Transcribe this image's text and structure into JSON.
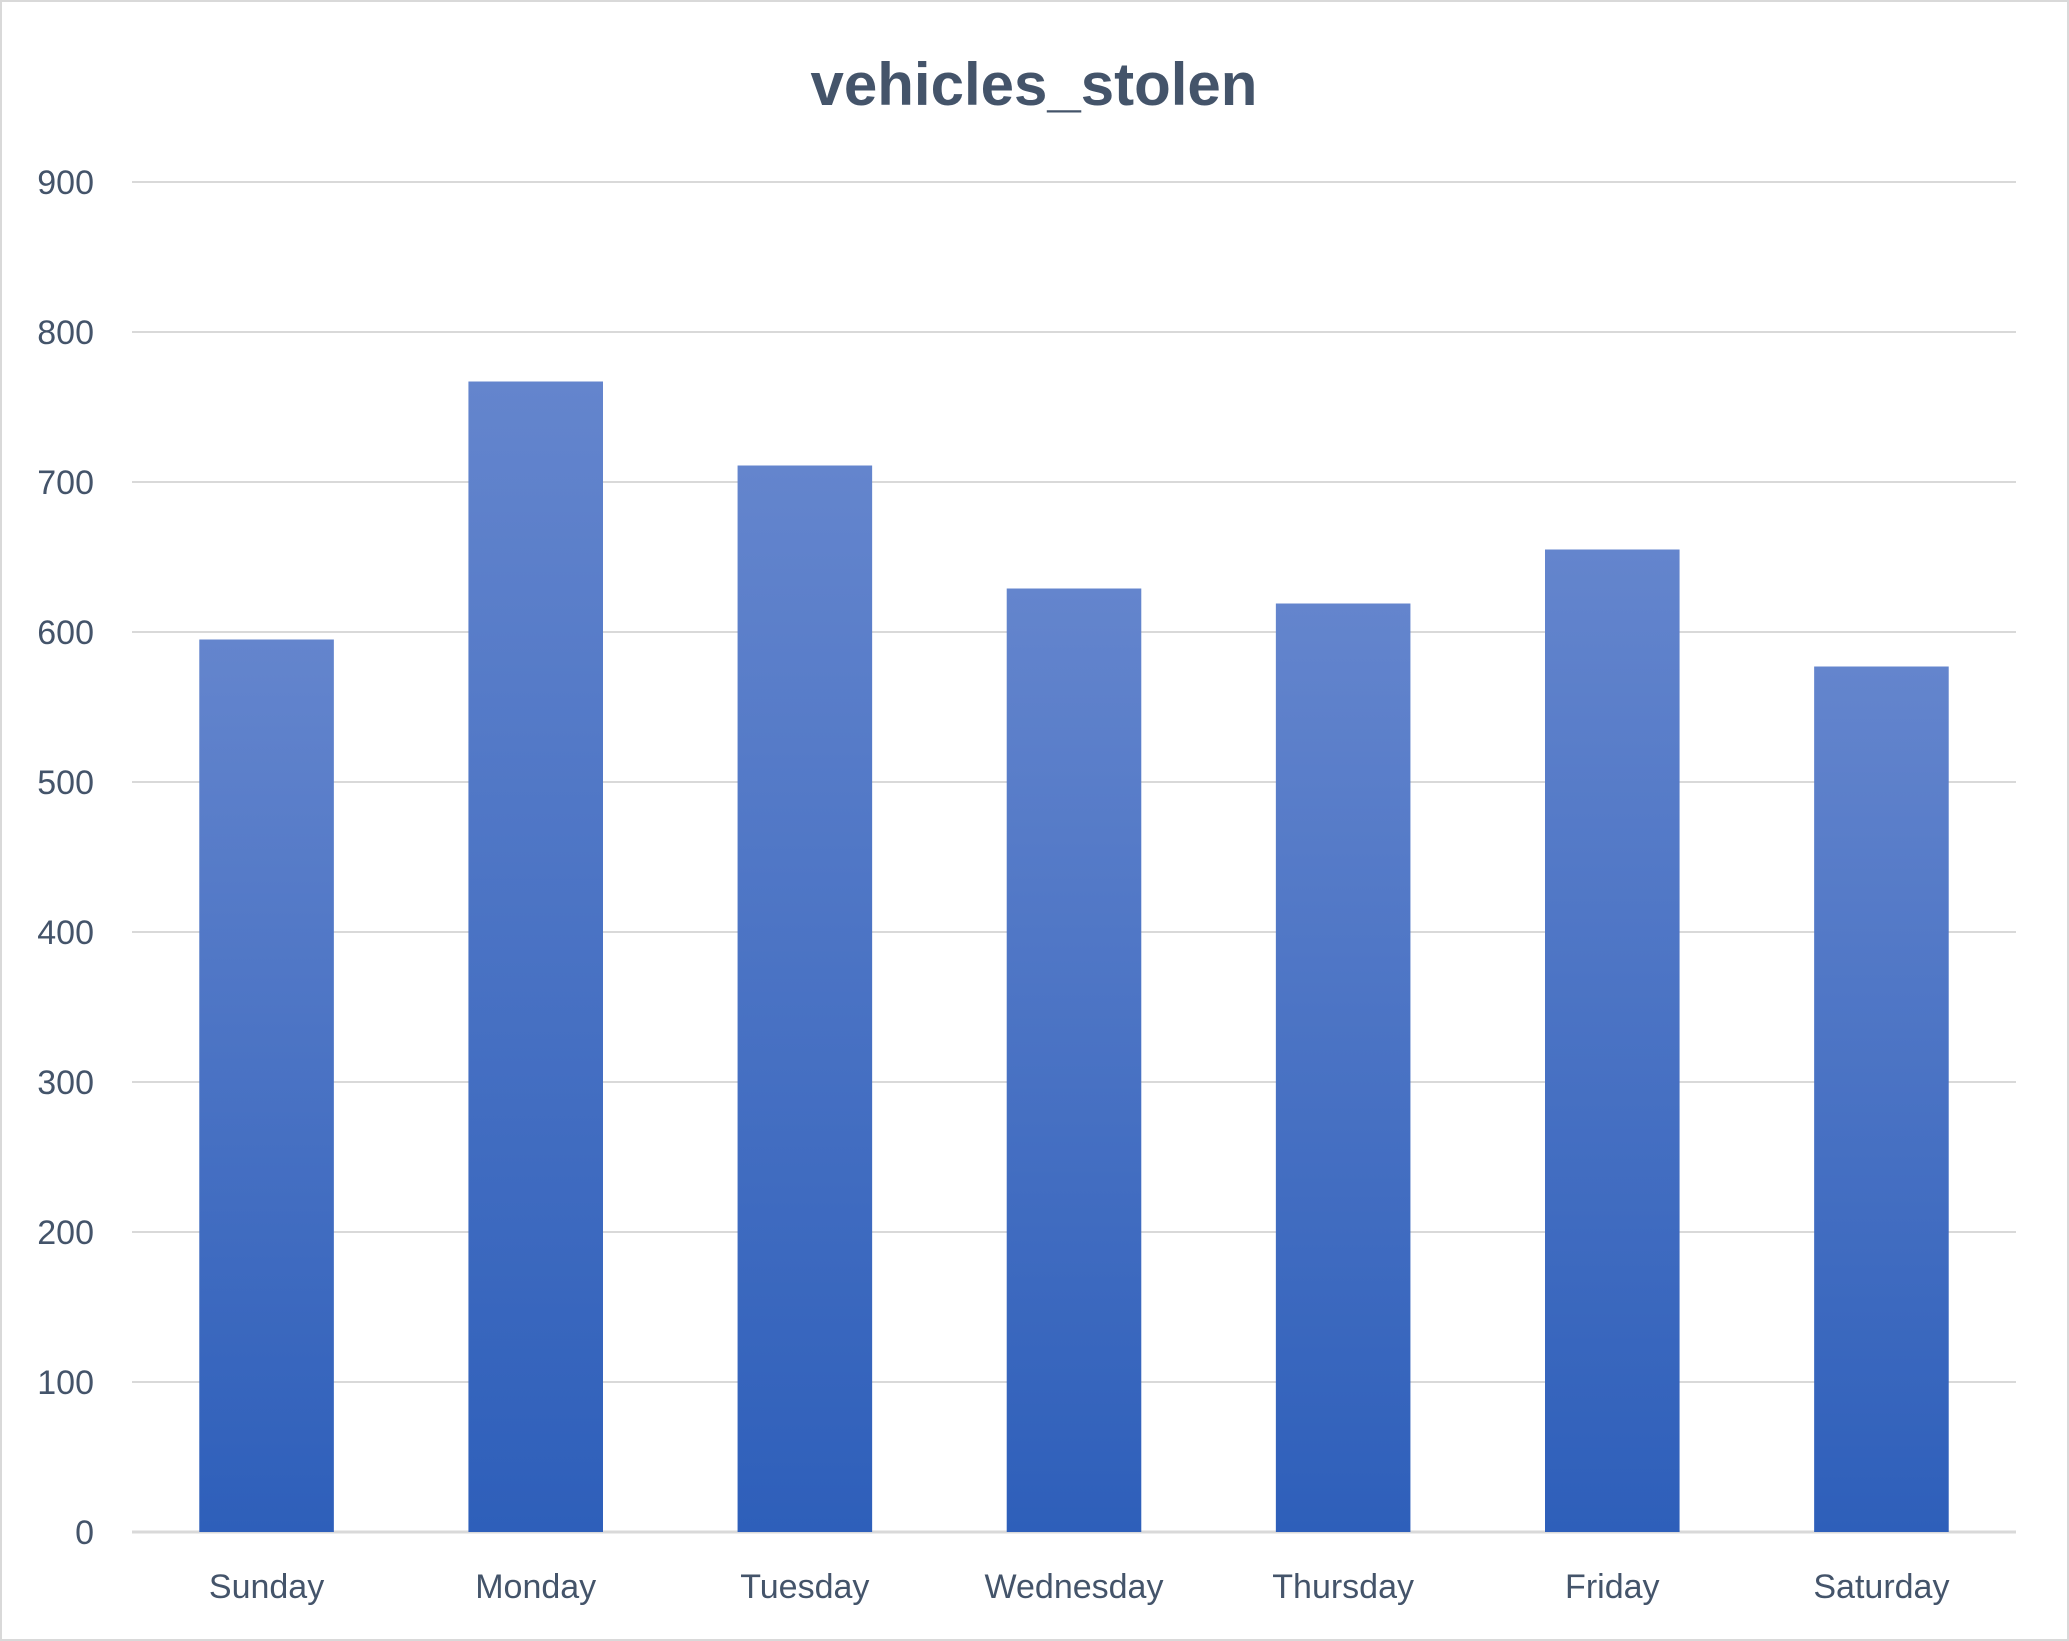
{
  "chart_data": {
    "type": "bar",
    "title": "vehicles_stolen",
    "categories": [
      "Sunday",
      "Monday",
      "Tuesday",
      "Wednesday",
      "Thursday",
      "Friday",
      "Saturday"
    ],
    "values": [
      595,
      767,
      711,
      629,
      619,
      655,
      577
    ],
    "ylim": [
      0,
      900
    ],
    "yticks": [
      0,
      100,
      200,
      300,
      400,
      500,
      600,
      700,
      800,
      900
    ],
    "grid": true,
    "legend": "none",
    "bar_color_top": "#6485cd",
    "bar_color_bottom": "#2e5fba",
    "text_color": "#44546a",
    "grid_color": "#d9d9d9"
  }
}
